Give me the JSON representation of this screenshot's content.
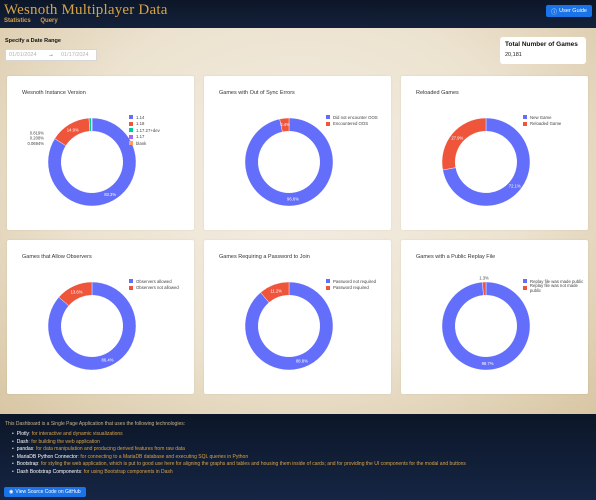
{
  "header": {
    "title": "Wesnoth Multiplayer Data",
    "nav": [
      "Statistics",
      "Query"
    ],
    "user_guide_label": "User Guide"
  },
  "controls": {
    "date_label": "Specify a Date Range",
    "start_date": "01/01/2024",
    "end_date": "01/17/2024"
  },
  "total": {
    "title": "Total Number of Games",
    "value": "20,181"
  },
  "colors": {
    "blue": "#636efa",
    "red": "#ef553b",
    "teal": "#00cc96",
    "purple": "#ab63fa",
    "orange": "#ffa15a"
  },
  "chart_data": [
    {
      "type": "pie",
      "title": "Wesnoth Instance Version",
      "labels": [
        "1.14",
        "1.18",
        "1.17.27+dev",
        "1.17",
        "blank"
      ],
      "values": [
        83.3,
        14.9,
        0.819,
        0.208,
        0.0694
      ],
      "slice_labels": [
        "83.3%",
        "14.9%",
        "0.819%",
        "0.208%",
        "0.0694%"
      ],
      "colors": [
        "#636efa",
        "#ef553b",
        "#00cc96",
        "#ab63fa",
        "#ffa15a"
      ],
      "hole": 0.7
    },
    {
      "type": "pie",
      "title": "Games with Out of Sync Errors",
      "labels": [
        "Did not encounter OOS",
        "Encountered OOS"
      ],
      "values": [
        96.6,
        3.4
      ],
      "slice_labels": [
        "96.6%",
        "3.4%"
      ],
      "colors": [
        "#636efa",
        "#ef553b"
      ],
      "hole": 0.7
    },
    {
      "type": "pie",
      "title": "Reloaded Games",
      "labels": [
        "New Game",
        "Reloaded Game"
      ],
      "values": [
        72.1,
        27.9
      ],
      "slice_labels": [
        "72.1%",
        "27.9%"
      ],
      "colors": [
        "#636efa",
        "#ef553b"
      ],
      "hole": 0.7
    },
    {
      "type": "pie",
      "title": "Games that Allow Observers",
      "labels": [
        "Observers allowed",
        "Observers not allowed"
      ],
      "values": [
        86.4,
        13.6
      ],
      "slice_labels": [
        "86.4%",
        "13.6%"
      ],
      "colors": [
        "#636efa",
        "#ef553b"
      ],
      "hole": 0.7
    },
    {
      "type": "pie",
      "title": "Games Requiring a Password to Join",
      "labels": [
        "Password not required",
        "Password required"
      ],
      "values": [
        88.8,
        11.2
      ],
      "slice_labels": [
        "88.8%",
        "11.2%"
      ],
      "colors": [
        "#636efa",
        "#ef553b"
      ],
      "hole": 0.7
    },
    {
      "type": "pie",
      "title": "Games with a Public Replay File",
      "labels": [
        "Replay file was made public",
        "Replay file was not made public"
      ],
      "values": [
        98.7,
        1.3
      ],
      "slice_labels": [
        "98.7%",
        "1.3%"
      ],
      "colors": [
        "#636efa",
        "#ef553b"
      ],
      "hole": 0.7
    }
  ],
  "footer": {
    "intro": "This Dashboard is a Single Page Application that uses the following technologies:",
    "items": [
      {
        "tech": "Plotly",
        "desc": ": for interactive and dynamic visualizations"
      },
      {
        "tech": "Dash",
        "desc": ": for building the web application"
      },
      {
        "tech": "pandas",
        "desc": ": for data manipulation and producing derived features from raw data"
      },
      {
        "tech": "MariaDB Python Connector",
        "desc": ": for connecting to a MariaDB database and executing SQL queries in Python"
      },
      {
        "tech": "Bootstrap",
        "desc": ": for styling the web application, which is put to good use here for aligning the graphs and tables and housing them inside of cards; and for providing the UI components for the modal and buttons"
      },
      {
        "tech": "Dash Bootstrap Components",
        "desc": ": for using Bootstrap components in Dash"
      }
    ],
    "github_label": "View Source Code on GitHub"
  }
}
